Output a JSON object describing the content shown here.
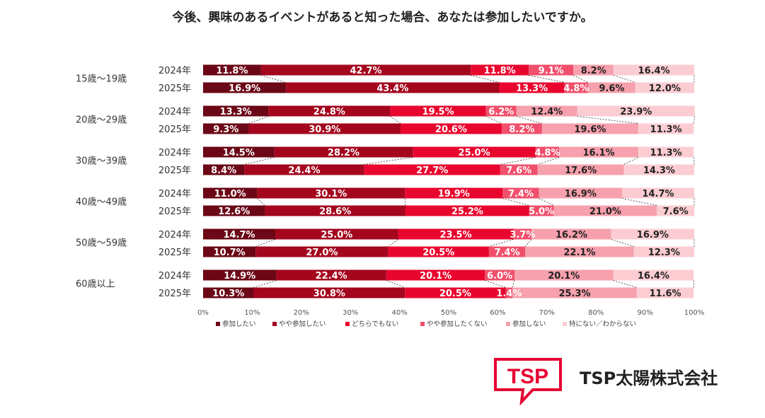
{
  "chart_data": {
    "type": "bar",
    "orientation": "horizontal",
    "stacked": true,
    "normalized": true,
    "title": "今後、興味のあるイベントがあると知った場合、あなたは参加したいですか。",
    "xlim": [
      0,
      100
    ],
    "x_ticks": [
      "0%",
      "10%",
      "20%",
      "30%",
      "40%",
      "50%",
      "60%",
      "70%",
      "80%",
      "90%",
      "100%"
    ],
    "legend_position": "bottom",
    "series": [
      {
        "name": "参加したい",
        "color": "#6b0716"
      },
      {
        "name": "やや参加したい",
        "color": "#a3061d"
      },
      {
        "name": "どちらでもない",
        "color": "#e8062e"
      },
      {
        "name": "やや参加したくない",
        "color": "#f0506c"
      },
      {
        "name": "参加しない",
        "color": "#f6a1ad"
      },
      {
        "name": "特にない／わからない",
        "color": "#fbcdd3"
      }
    ],
    "groups": [
      {
        "label": "15歳〜19歳",
        "rows": [
          {
            "year": "2024年",
            "values": [
              11.8,
              42.7,
              11.8,
              9.1,
              8.2,
              16.4
            ],
            "labels": [
              "11.8%",
              "42.7%",
              "11.8%",
              "9.1%",
              "8.2%",
              "16.4%"
            ]
          },
          {
            "year": "2025年",
            "values": [
              16.9,
              43.4,
              13.3,
              4.8,
              9.6,
              12.0
            ],
            "labels": [
              "16.9%",
              "43.4%",
              "13.3%",
              "4.8%",
              "9.6%",
              "12.0%"
            ]
          }
        ]
      },
      {
        "label": "20歳〜29歳",
        "rows": [
          {
            "year": "2024年",
            "values": [
              13.3,
              24.8,
              19.5,
              6.2,
              12.4,
              23.9
            ],
            "labels": [
              "13.3%",
              "24.8%",
              "19.5%",
              "6.2%",
              "12.4%",
              "23.9%"
            ]
          },
          {
            "year": "2025年",
            "values": [
              9.3,
              30.9,
              20.6,
              8.2,
              19.6,
              11.3
            ],
            "labels": [
              "9.3%",
              "30.9%",
              "20.6%",
              "8.2%",
              "19.6%",
              "11.3%"
            ]
          }
        ]
      },
      {
        "label": "30歳〜39歳",
        "rows": [
          {
            "year": "2024年",
            "values": [
              14.5,
              28.2,
              25.0,
              4.8,
              16.1,
              11.3
            ],
            "labels": [
              "14.5%",
              "28.2%",
              "25.0%",
              "4.8%",
              "16.1%",
              "11.3%"
            ]
          },
          {
            "year": "2025年",
            "values": [
              8.4,
              24.4,
              27.7,
              7.6,
              17.6,
              14.3
            ],
            "labels": [
              "8.4%",
              "24.4%",
              "27.7%",
              "7.6%",
              "17.6%",
              "14.3%"
            ]
          }
        ]
      },
      {
        "label": "40歳〜49歳",
        "rows": [
          {
            "year": "2024年",
            "values": [
              11.0,
              30.1,
              19.9,
              7.4,
              16.9,
              14.7
            ],
            "labels": [
              "11.0%",
              "30.1%",
              "19.9%",
              "7.4%",
              "16.9%",
              "14.7%"
            ]
          },
          {
            "year": "2025年",
            "values": [
              12.6,
              28.6,
              25.2,
              5.0,
              21.0,
              7.6
            ],
            "labels": [
              "12.6%",
              "28.6%",
              "25.2%",
              "5.0%",
              "21.0%",
              "7.6%"
            ]
          }
        ]
      },
      {
        "label": "50歳〜59歳",
        "rows": [
          {
            "year": "2024年",
            "values": [
              14.7,
              25.0,
              23.5,
              3.7,
              16.2,
              16.9
            ],
            "labels": [
              "14.7%",
              "25.0%",
              "23.5%",
              "3.7%",
              "16.2%",
              "16.9%"
            ]
          },
          {
            "year": "2025年",
            "values": [
              10.7,
              27.0,
              20.5,
              7.4,
              22.1,
              12.3
            ],
            "labels": [
              "10.7%",
              "27.0%",
              "20.5%",
              "7.4%",
              "22.1%",
              "12.3%"
            ]
          }
        ]
      },
      {
        "label": "60歳以上",
        "rows": [
          {
            "year": "2024年",
            "values": [
              14.9,
              22.4,
              20.1,
              6.0,
              20.1,
              16.4
            ],
            "labels": [
              "14.9%",
              "22.4%",
              "20.1%",
              "6.0%",
              "20.1%",
              "16.4%"
            ]
          },
          {
            "year": "2025年",
            "values": [
              10.3,
              30.8,
              20.5,
              1.4,
              25.3,
              11.6
            ],
            "labels": [
              "10.3%",
              "30.8%",
              "20.5%",
              "1.4%",
              "25.3%",
              "11.6%"
            ]
          }
        ]
      }
    ]
  },
  "branding": {
    "logo_text": "TSP",
    "company_name": "TSP太陽株式会社",
    "accent_color": "#e60033"
  }
}
